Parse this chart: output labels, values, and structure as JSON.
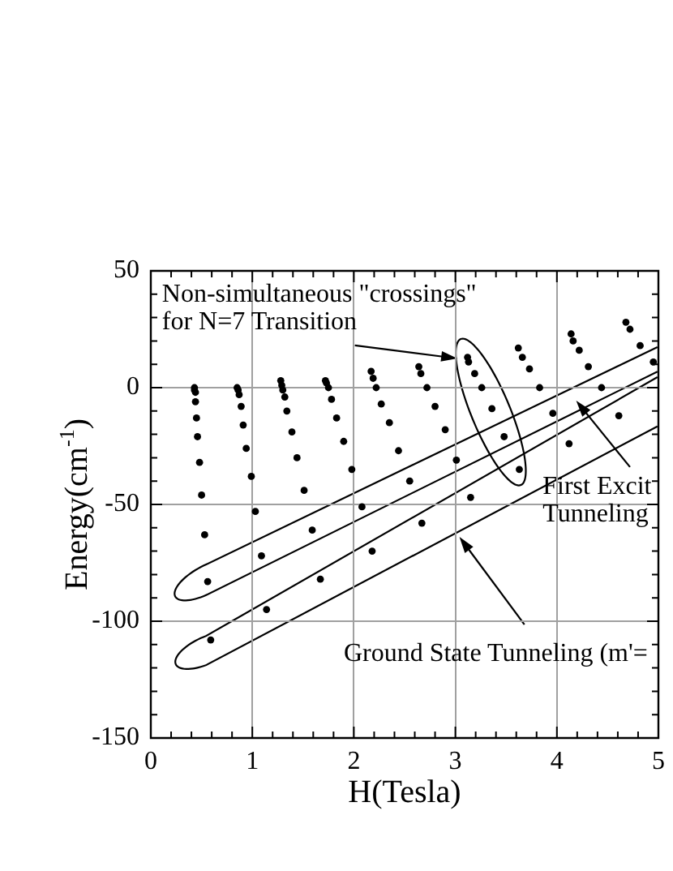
{
  "chart_data": {
    "type": "scatter",
    "xlabel": "H(Tesla)",
    "ylabel": "Energy(cm$^{-1}$)",
    "x": [
      0.43,
      0.43,
      0.44,
      0.44,
      0.45,
      0.46,
      0.48,
      0.5,
      0.53,
      0.56,
      0.59,
      0.85,
      0.86,
      0.87,
      0.89,
      0.91,
      0.94,
      0.99,
      1.03,
      1.09,
      1.14,
      1.28,
      1.29,
      1.3,
      1.32,
      1.34,
      1.39,
      1.44,
      1.51,
      1.59,
      1.67,
      1.72,
      1.73,
      1.75,
      1.78,
      1.83,
      1.9,
      1.98,
      2.08,
      2.18,
      2.17,
      2.19,
      2.22,
      2.27,
      2.35,
      2.44,
      2.55,
      2.67,
      2.64,
      2.66,
      2.72,
      2.8,
      2.9,
      3.01,
      3.15,
      3.12,
      3.13,
      3.19,
      3.26,
      3.36,
      3.48,
      3.63,
      3.62,
      3.66,
      3.73,
      3.83,
      3.96,
      4.12,
      4.14,
      4.16,
      4.22,
      4.31,
      4.44,
      4.61,
      4.68,
      4.72,
      4.82,
      4.95
    ],
    "values": [
      0,
      -1,
      -2,
      -6,
      -13,
      -21,
      -32,
      -46,
      -63,
      -83,
      -108,
      0,
      -1,
      -3,
      -8,
      -16,
      -26,
      -38,
      -53,
      -72,
      -95,
      3,
      1,
      -1,
      -4,
      -10,
      -19,
      -30,
      -44,
      -61,
      -82,
      3,
      2,
      0,
      -5,
      -13,
      -23,
      -35,
      -51,
      -70,
      7,
      4,
      0,
      -7,
      -15,
      -27,
      -40,
      -58,
      9,
      6,
      0,
      -8,
      -18,
      -31,
      -47,
      13,
      11,
      6,
      0,
      -9,
      -21,
      -35,
      17,
      13,
      8,
      0,
      -11,
      -24,
      23,
      20,
      16,
      9,
      0,
      -12,
      28,
      25,
      18,
      11
    ],
    "color": "#000000",
    "marker": "circle",
    "xlim": [
      0,
      5
    ],
    "ylim": [
      -150,
      50
    ],
    "xticks": [
      0,
      {
        "value": 0.2,
        "label": null
      },
      {
        "value": 0.4,
        "label": null
      },
      {
        "value": 0.6,
        "label": null
      },
      {
        "value": 0.8,
        "label": null
      },
      1,
      {
        "value": 1.2,
        "label": null
      },
      {
        "value": 1.4,
        "label": null
      },
      {
        "value": 1.6,
        "label": null
      },
      {
        "value": 1.8,
        "label": null
      },
      2,
      {
        "value": 2.2,
        "label": null
      },
      {
        "value": 2.4,
        "label": null
      },
      {
        "value": 2.6,
        "label": null
      },
      {
        "value": 2.8,
        "label": null
      },
      3,
      {
        "value": 3.2,
        "label": null
      },
      {
        "value": 3.4,
        "label": null
      },
      {
        "value": 3.6,
        "label": null
      },
      {
        "value": 3.8,
        "label": null
      },
      4,
      {
        "value": 4.2,
        "label": null
      },
      {
        "value": 4.4,
        "label": null
      },
      {
        "value": 4.6,
        "label": null
      },
      {
        "value": 4.8,
        "label": null
      },
      5
    ],
    "yticks": [
      -150,
      {
        "value": -140,
        "label": null
      },
      {
        "value": -130,
        "label": null
      },
      {
        "value": -120,
        "label": null
      },
      {
        "value": -110,
        "label": null
      },
      -100,
      {
        "value": -90,
        "label": null
      },
      {
        "value": -80,
        "label": null
      },
      {
        "value": -70,
        "label": null
      },
      {
        "value": -60,
        "label": null
      },
      -50,
      {
        "value": -40,
        "label": null
      },
      {
        "value": -30,
        "label": null
      },
      {
        "value": -20,
        "label": null
      },
      {
        "value": -10,
        "label": null
      },
      0,
      {
        "value": 10,
        "label": null
      },
      {
        "value": 20,
        "label": null
      },
      {
        "value": 30,
        "label": null
      },
      {
        "value": 40,
        "label": null
      },
      50
    ],
    "grid": true,
    "annotations": [
      "Non-simultaneous \"crossings\"\nfor N=7 Transition",
      "First Excit\nTunneling",
      "Ground State Tunneling (m'="
    ]
  }
}
